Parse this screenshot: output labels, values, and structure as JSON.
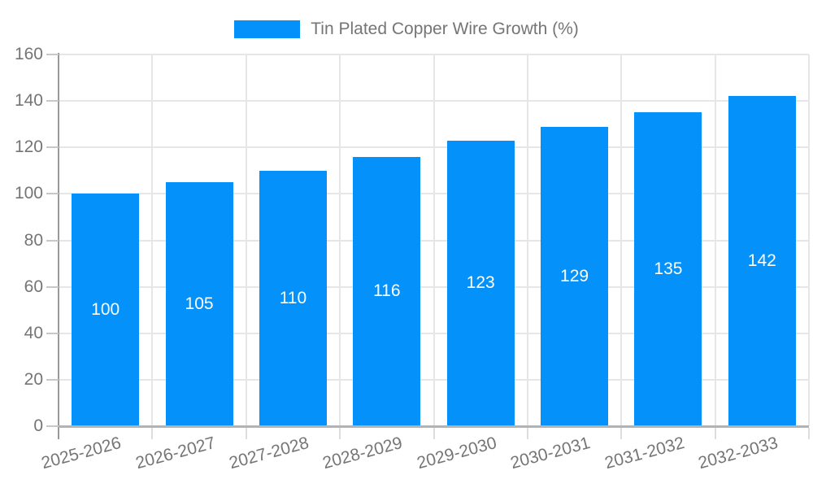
{
  "chart_data": {
    "type": "bar",
    "legend_label": "Tin Plated Copper Wire Growth (%)",
    "categories": [
      "2025-2026",
      "2026-2027",
      "2027-2028",
      "2028-2029",
      "2029-2030",
      "2030-2031",
      "2031-2032",
      "2032-2033"
    ],
    "values": [
      100,
      105,
      110,
      116,
      123,
      129,
      135,
      142
    ],
    "yticks": [
      0,
      20,
      40,
      60,
      80,
      100,
      120,
      140,
      160
    ],
    "ylim": [
      0,
      160
    ],
    "grid": true,
    "legend_position": "top",
    "value_labels": "inside-center"
  },
  "colors": {
    "bar": "#0591fa",
    "value_label": "#ffffff",
    "axis_text": "#757575",
    "gridline": "#e6e6e6",
    "y_axis_line": "#999999",
    "x_axis_line": "#b3b3b3"
  }
}
